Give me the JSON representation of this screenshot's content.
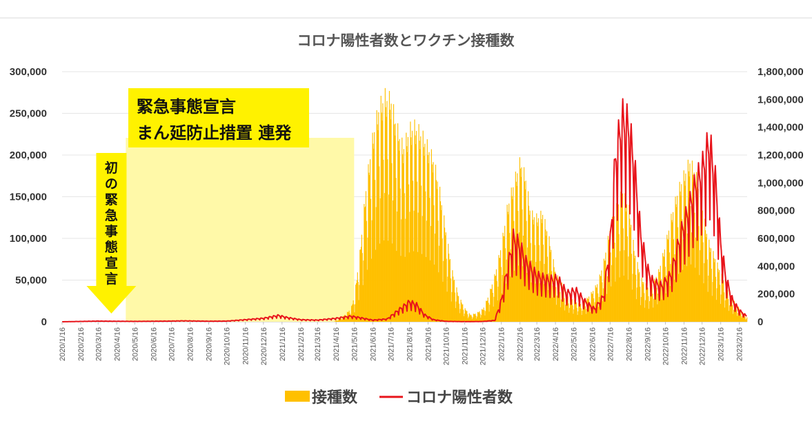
{
  "chart_data": {
    "type": "bar+line",
    "title": "コロナ陽性者数とワクチン接種数",
    "left_axis": {
      "ylim": [
        0,
        300000
      ],
      "ticks": [
        "300,000",
        "250,000",
        "200,000",
        "150,000",
        "100,000",
        "50,000",
        "0"
      ]
    },
    "right_axis": {
      "ylim": [
        0,
        1800000
      ],
      "ticks": [
        "1,800,000",
        "1,600,000",
        "1,400,000",
        "1,200,000",
        "1,000,000",
        "800,000",
        "600,000",
        "400,000",
        "200,000",
        "0"
      ]
    },
    "x_tick_labels": [
      "2020/1/16",
      "2020/2/16",
      "2020/3/16",
      "2020/4/16",
      "2020/5/16",
      "2020/6/16",
      "2020/7/16",
      "2020/8/16",
      "2020/9/16",
      "2020/10/16",
      "2020/11/16",
      "2020/12/16",
      "2021/1/16",
      "2021/2/16",
      "2021/3/16",
      "2021/4/16",
      "2021/5/16",
      "2021/6/16",
      "2021/7/16",
      "2021/8/16",
      "2021/9/16",
      "2021/10/16",
      "2021/11/16",
      "2021/12/16",
      "2022/1/16",
      "2022/2/16",
      "2022/3/16",
      "2022/4/16",
      "2022/5/16",
      "2022/6/16",
      "2022/7/16",
      "2022/8/16",
      "2022/9/16",
      "2022/10/16",
      "2022/11/16",
      "2022/12/16",
      "2023/1/16",
      "2023/2/16"
    ],
    "grid": "horizontal",
    "legend": "bottom",
    "series": [
      {
        "name": "接種数",
        "kind": "bar",
        "axis": "left",
        "color": "#FFC000",
        "anchors": [
          [
            "2021/4/12",
            0
          ],
          [
            "2021/4/25",
            5000
          ],
          [
            "2021/5/10",
            15000
          ],
          [
            "2021/5/16",
            30000
          ],
          [
            "2021/5/25",
            80000
          ],
          [
            "2021/6/5",
            160000
          ],
          [
            "2021/6/16",
            215000
          ],
          [
            "2021/6/25",
            245000
          ],
          [
            "2021/7/5",
            260000
          ],
          [
            "2021/7/16",
            255000
          ],
          [
            "2021/7/25",
            225000
          ],
          [
            "2021/8/5",
            200000
          ],
          [
            "2021/8/16",
            222000
          ],
          [
            "2021/8/25",
            225000
          ],
          [
            "2021/9/5",
            215000
          ],
          [
            "2021/9/16",
            200000
          ],
          [
            "2021/9/25",
            185000
          ],
          [
            "2021/10/5",
            150000
          ],
          [
            "2021/10/16",
            100000
          ],
          [
            "2021/10/25",
            60000
          ],
          [
            "2021/11/5",
            30000
          ],
          [
            "2021/11/16",
            15000
          ],
          [
            "2021/11/25",
            8000
          ],
          [
            "2021/12/5",
            10000
          ],
          [
            "2021/12/16",
            15000
          ],
          [
            "2021/12/25",
            30000
          ],
          [
            "2022/1/5",
            55000
          ],
          [
            "2022/1/16",
            90000
          ],
          [
            "2022/1/25",
            130000
          ],
          [
            "2022/2/5",
            160000
          ],
          [
            "2022/2/16",
            185000
          ],
          [
            "2022/2/25",
            165000
          ],
          [
            "2022/3/5",
            125000
          ],
          [
            "2022/3/16",
            120000
          ],
          [
            "2022/3/25",
            125000
          ],
          [
            "2022/4/5",
            95000
          ],
          [
            "2022/4/16",
            55000
          ],
          [
            "2022/4/25",
            45000
          ],
          [
            "2022/5/5",
            30000
          ],
          [
            "2022/5/16",
            25000
          ],
          [
            "2022/5/25",
            20000
          ],
          [
            "2022/6/5",
            25000
          ],
          [
            "2022/6/16",
            35000
          ],
          [
            "2022/6/25",
            45000
          ],
          [
            "2022/7/5",
            70000
          ],
          [
            "2022/7/16",
            110000
          ],
          [
            "2022/7/25",
            130000
          ],
          [
            "2022/8/5",
            150000
          ],
          [
            "2022/8/16",
            130000
          ],
          [
            "2022/8/25",
            80000
          ],
          [
            "2022/9/5",
            50000
          ],
          [
            "2022/9/16",
            40000
          ],
          [
            "2022/9/25",
            45000
          ],
          [
            "2022/10/5",
            60000
          ],
          [
            "2022/10/16",
            90000
          ],
          [
            "2022/10/25",
            120000
          ],
          [
            "2022/11/5",
            150000
          ],
          [
            "2022/11/16",
            170000
          ],
          [
            "2022/11/25",
            185000
          ],
          [
            "2022/12/5",
            170000
          ],
          [
            "2022/12/16",
            130000
          ],
          [
            "2022/12/25",
            95000
          ],
          [
            "2023/1/5",
            75000
          ],
          [
            "2023/1/16",
            55000
          ],
          [
            "2023/1/25",
            40000
          ],
          [
            "2023/2/5",
            25000
          ],
          [
            "2023/2/16",
            15000
          ],
          [
            "2023/2/28",
            5000
          ]
        ]
      },
      {
        "name": "コロナ陽性者数",
        "kind": "line",
        "axis": "right",
        "color": "#E8141B",
        "anchors": [
          [
            "2020/1/16",
            0
          ],
          [
            "2020/3/16",
            5000
          ],
          [
            "2020/4/10",
            4000
          ],
          [
            "2020/5/16",
            3000
          ],
          [
            "2020/7/16",
            5000
          ],
          [
            "2020/8/5",
            7000
          ],
          [
            "2020/9/16",
            4000
          ],
          [
            "2020/10/16",
            5000
          ],
          [
            "2020/11/16",
            15000
          ],
          [
            "2020/12/16",
            25000
          ],
          [
            "2021/1/10",
            45000
          ],
          [
            "2021/1/25",
            30000
          ],
          [
            "2021/2/16",
            15000
          ],
          [
            "2021/3/16",
            12000
          ],
          [
            "2021/4/16",
            25000
          ],
          [
            "2021/5/10",
            40000
          ],
          [
            "2021/5/25",
            30000
          ],
          [
            "2021/6/16",
            12000
          ],
          [
            "2021/7/10",
            20000
          ],
          [
            "2021/7/25",
            70000
          ],
          [
            "2021/8/16",
            140000
          ],
          [
            "2021/8/28",
            120000
          ],
          [
            "2021/9/10",
            50000
          ],
          [
            "2021/9/25",
            15000
          ],
          [
            "2021/10/16",
            3000
          ],
          [
            "2021/11/16",
            1000
          ],
          [
            "2021/12/16",
            2000
          ],
          [
            "2022/1/5",
            10000
          ],
          [
            "2022/1/16",
            150000
          ],
          [
            "2022/1/25",
            350000
          ],
          [
            "2022/2/5",
            580000
          ],
          [
            "2022/2/16",
            530000
          ],
          [
            "2022/2/25",
            420000
          ],
          [
            "2022/3/16",
            320000
          ],
          [
            "2022/4/5",
            290000
          ],
          [
            "2022/4/20",
            300000
          ],
          [
            "2022/5/5",
            200000
          ],
          [
            "2022/5/20",
            220000
          ],
          [
            "2022/6/5",
            140000
          ],
          [
            "2022/6/20",
            90000
          ],
          [
            "2022/7/5",
            180000
          ],
          [
            "2022/7/16",
            550000
          ],
          [
            "2022/7/25",
            1150000
          ],
          [
            "2022/8/5",
            1400000
          ],
          [
            "2022/8/16",
            1350000
          ],
          [
            "2022/8/25",
            1100000
          ],
          [
            "2022/9/5",
            600000
          ],
          [
            "2022/9/16",
            370000
          ],
          [
            "2022/9/25",
            280000
          ],
          [
            "2022/10/10",
            250000
          ],
          [
            "2022/10/25",
            330000
          ],
          [
            "2022/11/10",
            600000
          ],
          [
            "2022/11/25",
            800000
          ],
          [
            "2022/12/5",
            950000
          ],
          [
            "2022/12/16",
            1050000
          ],
          [
            "2022/12/28",
            1250000
          ],
          [
            "2023/1/8",
            950000
          ],
          [
            "2023/1/16",
            550000
          ],
          [
            "2023/1/25",
            300000
          ],
          [
            "2023/2/5",
            150000
          ],
          [
            "2023/2/16",
            80000
          ],
          [
            "2023/2/28",
            40000
          ]
        ]
      }
    ]
  },
  "annotations": {
    "first_emergency": {
      "text": "初の緊急事態宣言",
      "color": "#FFF200",
      "date": "2020/4/7"
    },
    "repeated": {
      "line1": "緊急事態宣言",
      "line2": "まん延防止措置 連発",
      "band_color": "#FFF9A8",
      "label_color": "#FFF200",
      "start": "2020/5/1",
      "end": "2021/5/16"
    }
  },
  "legend": {
    "items": [
      {
        "label": "接種数",
        "color": "#FFC000"
      },
      {
        "label": "コロナ陽性者数",
        "color": "#E8141B"
      }
    ]
  }
}
